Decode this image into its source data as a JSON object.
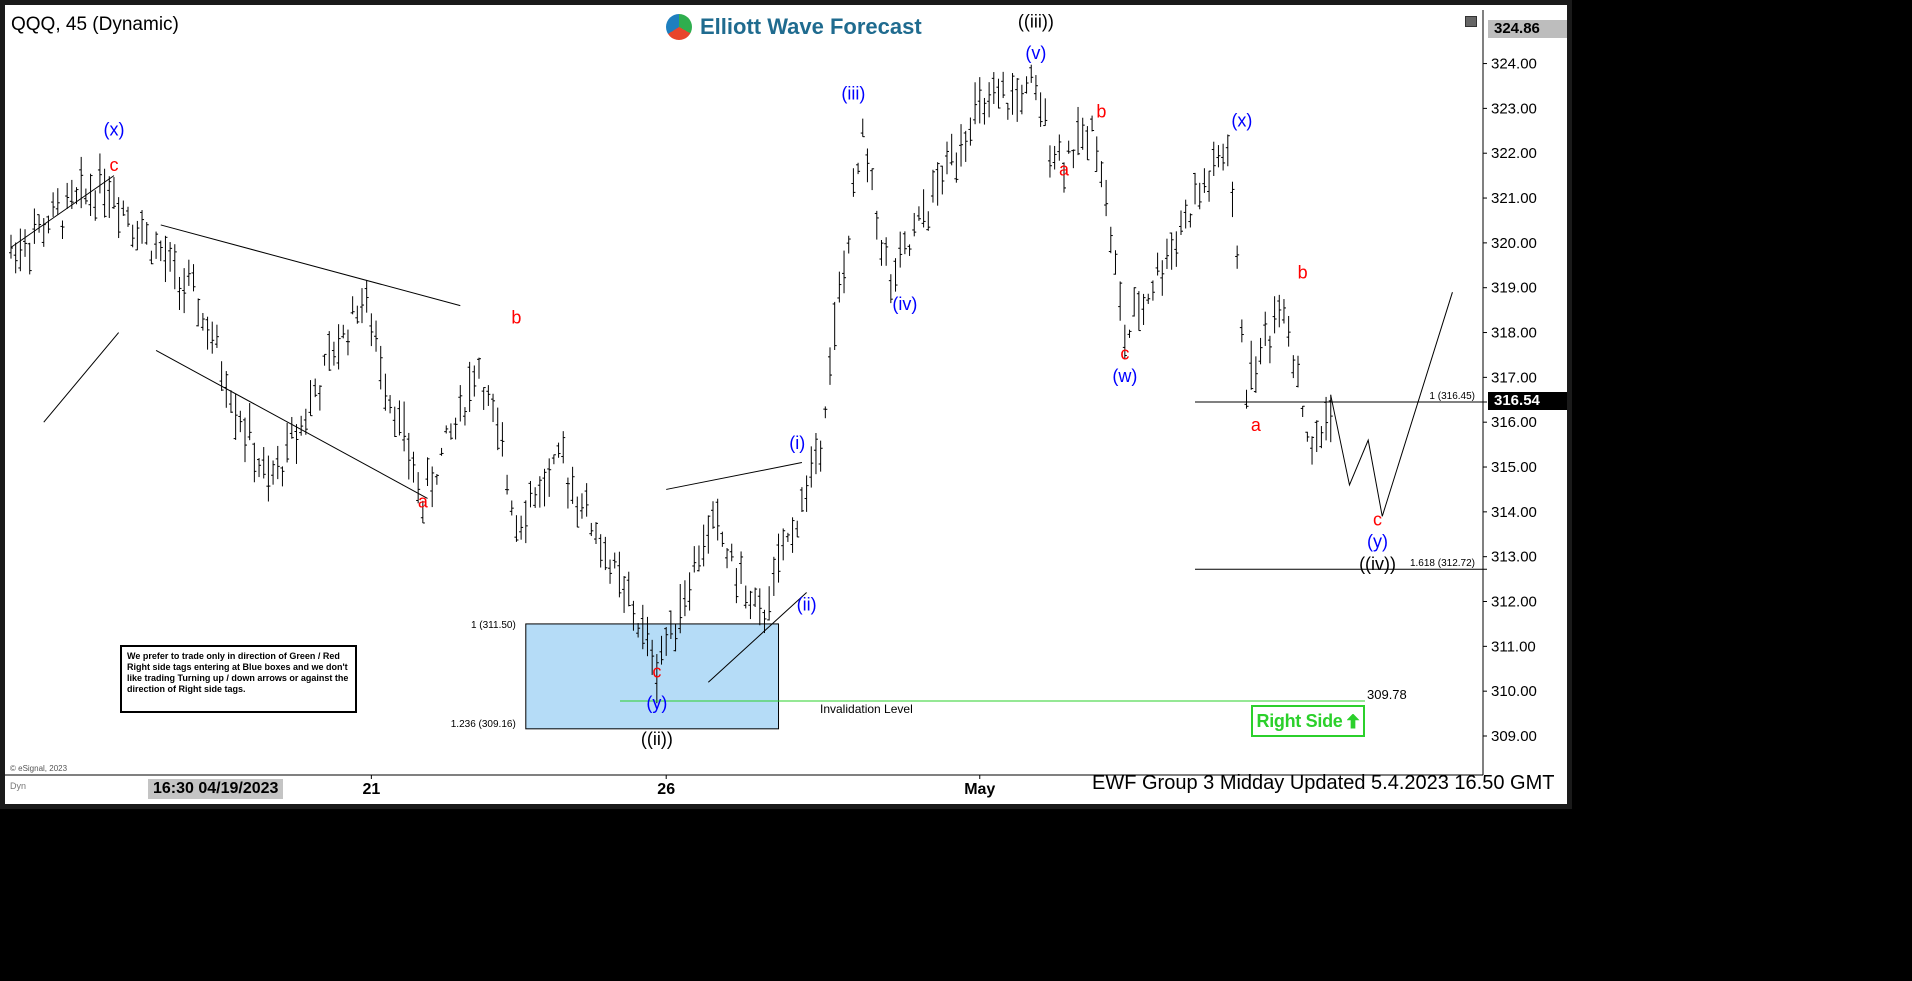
{
  "header": {
    "symbol_title": "QQQ, 45 (Dynamic)",
    "logo_text": "Elliott Wave Forecast"
  },
  "footer": {
    "title": "EWF Group 3 Midday Updated 5.4.2023 16.50 GMT",
    "time_label": "16:30 04/19/2023",
    "copyright": "© eSignal, 2023",
    "dyn": "Dyn"
  },
  "note_text": "We prefer to trade only in direction of Green / Red Right side tags entering at Blue boxes and we don't like trading Turning up / down arrows or against the direction of Right side tags.",
  "right_side_label": "Right Side",
  "colors": {
    "blue_box": "#b5dcf7",
    "wave_blue": "#0000ff",
    "wave_red": "#ff0000",
    "right_side_green": "#2bd02b",
    "invalidation_line": "#2bd02b"
  },
  "chart_data": {
    "type": "ohlc",
    "y_axis": {
      "min": 308.6,
      "max": 325.0,
      "ticks": [
        309.0,
        310.0,
        311.0,
        312.0,
        313.0,
        314.0,
        315.0,
        316.0,
        317.0,
        318.0,
        319.0,
        320.0,
        321.0,
        322.0,
        323.0,
        324.0
      ],
      "tick_labels": [
        "309.00",
        "310.00",
        "311.00",
        "312.00",
        "313.00",
        "314.00",
        "315.00",
        "316.00",
        "317.00",
        "318.00",
        "319.00",
        "320.00",
        "321.00",
        "322.00",
        "323.00",
        "324.00"
      ],
      "high_label": "324.86",
      "current_label": "316.54",
      "current_value": 316.54
    },
    "x_axis": {
      "labels": [
        "21",
        "26",
        "May"
      ],
      "label_bar_index": [
        77,
        140,
        207
      ]
    },
    "bars": 260,
    "price_path": [
      [
        0,
        319.8
      ],
      [
        20,
        321.4
      ],
      [
        40,
        318.6
      ],
      [
        55,
        314.5
      ],
      [
        75,
        318.8
      ],
      [
        88,
        314.2
      ],
      [
        100,
        317.3
      ],
      [
        108,
        313.9
      ],
      [
        118,
        315.1
      ],
      [
        138,
        310.6
      ],
      [
        150,
        313.8
      ],
      [
        160,
        311.5
      ],
      [
        172,
        315.1
      ],
      [
        182,
        322.3
      ],
      [
        188,
        319.0
      ],
      [
        205,
        322.8
      ],
      [
        218,
        323.4
      ],
      [
        224,
        321.9
      ],
      [
        232,
        322.5
      ],
      [
        238,
        317.8
      ],
      [
        250,
        320.4
      ],
      [
        260,
        322.1
      ],
      [
        264,
        316.8
      ],
      [
        272,
        318.8
      ],
      [
        278,
        315.2
      ],
      [
        282,
        316.4
      ]
    ],
    "wave_labels": [
      {
        "text": "(x)",
        "bar": 22,
        "price": 322.4,
        "color": "blue"
      },
      {
        "text": "c",
        "bar": 22,
        "price": 321.6,
        "color": "red"
      },
      {
        "text": "a",
        "bar": 88,
        "price": 314.1,
        "color": "red"
      },
      {
        "text": "b",
        "bar": 108,
        "price": 318.2,
        "color": "red"
      },
      {
        "text": "c",
        "bar": 138,
        "price": 310.3,
        "color": "red"
      },
      {
        "text": "(y)",
        "bar": 138,
        "price": 309.6,
        "color": "blue"
      },
      {
        "text": "((ii))",
        "bar": 138,
        "price": 308.8,
        "color": "black"
      },
      {
        "text": "(i)",
        "bar": 168,
        "price": 315.4,
        "color": "blue"
      },
      {
        "text": "(ii)",
        "bar": 170,
        "price": 311.8,
        "color": "blue"
      },
      {
        "text": "(iii)",
        "bar": 180,
        "price": 323.2,
        "color": "blue"
      },
      {
        "text": "(iv)",
        "bar": 191,
        "price": 318.5,
        "color": "blue"
      },
      {
        "text": "((iii))",
        "bar": 219,
        "price": 324.8,
        "color": "black"
      },
      {
        "text": "(v)",
        "bar": 219,
        "price": 324.1,
        "color": "blue"
      },
      {
        "text": "a",
        "bar": 225,
        "price": 321.5,
        "color": "red"
      },
      {
        "text": "b",
        "bar": 233,
        "price": 322.8,
        "color": "red"
      },
      {
        "text": "c",
        "bar": 238,
        "price": 317.4,
        "color": "red"
      },
      {
        "text": "(w)",
        "bar": 238,
        "price": 316.9,
        "color": "blue"
      },
      {
        "text": "(x)",
        "bar": 263,
        "price": 322.6,
        "color": "blue"
      },
      {
        "text": "a",
        "bar": 266,
        "price": 315.8,
        "color": "red"
      },
      {
        "text": "b",
        "bar": 276,
        "price": 319.2,
        "color": "red"
      },
      {
        "text": "c",
        "bar": 292,
        "price": 313.7,
        "color": "red"
      },
      {
        "text": "(y)",
        "bar": 292,
        "price": 313.2,
        "color": "blue"
      },
      {
        "text": "((iv))",
        "bar": 292,
        "price": 312.7,
        "color": "black"
      }
    ],
    "projection": [
      [
        282,
        316.6
      ],
      [
        286,
        314.6
      ],
      [
        290,
        315.6
      ],
      [
        293,
        313.9
      ],
      [
        308,
        318.9
      ]
    ],
    "blue_box": {
      "bar_from": 110,
      "bar_to": 164,
      "price_high": 311.5,
      "price_low": 309.16
    },
    "blue_box_labels": [
      "1 (311.50)",
      "1.236 (309.16)"
    ],
    "fib_lines": [
      {
        "label": "1 (316.45)",
        "price": 316.45,
        "bar_from": 265,
        "bar_to": 322
      },
      {
        "label": "1.618 (312.72)",
        "price": 312.72,
        "bar_from": 265,
        "bar_to": 322
      }
    ],
    "invalidation": {
      "label": "Invalidation Level",
      "price": 309.78,
      "value_label": "309.78"
    },
    "trend_lines": [
      {
        "from": [
          0,
          319.9
        ],
        "to": [
          22,
          321.5
        ]
      },
      {
        "from": [
          7,
          316.0
        ],
        "to": [
          23,
          318.0
        ]
      },
      {
        "from": [
          32,
          320.4
        ],
        "to": [
          96,
          318.6
        ]
      },
      {
        "from": [
          31,
          317.6
        ],
        "to": [
          89,
          314.3
        ]
      },
      {
        "from": [
          140,
          314.5
        ],
        "to": [
          169,
          315.1
        ]
      },
      {
        "from": [
          149,
          310.2
        ],
        "to": [
          170,
          312.2
        ]
      }
    ]
  }
}
